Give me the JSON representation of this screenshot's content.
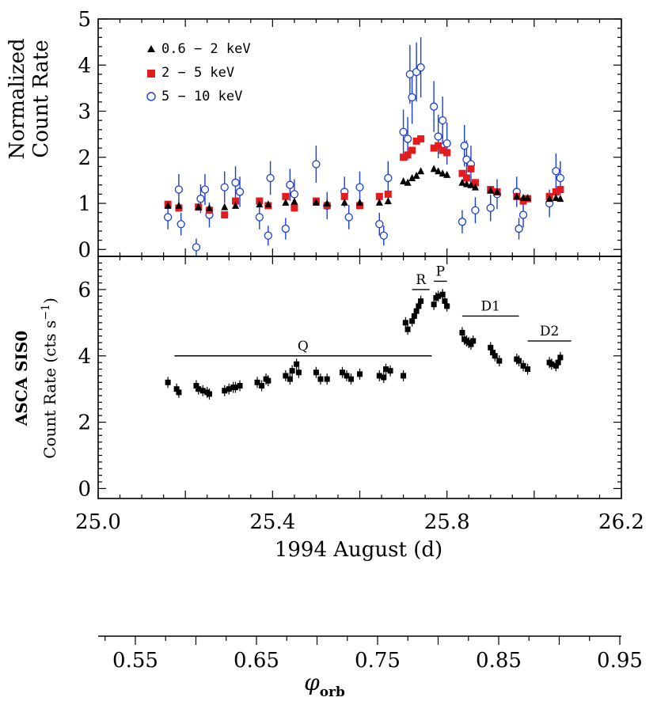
{
  "top_panel": {
    "ylabel_lines": [
      "Normalized",
      "Count Rate"
    ],
    "yticks": [
      "0",
      "1",
      "2",
      "3",
      "4",
      "5"
    ],
    "legend": [
      {
        "label": "0.6 − 2 keV",
        "marker": "triangle",
        "color": "#000000"
      },
      {
        "label": "2 − 5 keV",
        "marker": "square",
        "color": "#e41a1c"
      },
      {
        "label": "5 − 10 keV",
        "marker": "open-circle",
        "color": "#1a3fd6"
      }
    ]
  },
  "bottom_panel": {
    "ylabel_line1": "ASCA SIS0",
    "ylabel_line2_main": "Count Rate (cts s",
    "ylabel_line2_sup": "−1",
    "ylabel_line2_end": ")",
    "yticks": [
      "0",
      "2",
      "4",
      "6"
    ],
    "segments": [
      {
        "label": "Q",
        "x0": 25.175,
        "x1": 25.765,
        "y": 4.0
      },
      {
        "label": "R",
        "x0": 25.72,
        "x1": 25.76,
        "y": 6.0
      },
      {
        "label": "P",
        "x0": 25.77,
        "x1": 25.8,
        "y": 6.25
      },
      {
        "label": "D1",
        "x0": 25.835,
        "x1": 25.965,
        "y": 5.2
      },
      {
        "label": "D2",
        "x0": 25.985,
        "x1": 26.085,
        "y": 4.45
      }
    ]
  },
  "xaxis": {
    "label": "1994 August (d)",
    "ticks": [
      "25.0",
      "25.4",
      "25.8",
      "26.2"
    ]
  },
  "phase_axis": {
    "label_main": "φ",
    "label_sub": "orb",
    "ticks": [
      "0.55",
      "0.65",
      "0.75",
      "0.85",
      "0.95"
    ]
  },
  "chart_data": [
    {
      "type": "scatter",
      "title": "",
      "xlabel": "",
      "ylabel": "Normalized Count Rate",
      "xlim": [
        25.0,
        26.2
      ],
      "ylim": [
        -0.15,
        5.0
      ],
      "series": [
        {
          "name": "0.6 − 2 keV",
          "color": "#000000",
          "x": [
            25.16,
            25.185,
            25.23,
            25.255,
            25.29,
            25.315,
            25.37,
            25.39,
            25.43,
            25.45,
            25.5,
            25.525,
            25.565,
            25.6,
            25.645,
            25.665,
            25.7,
            25.71,
            25.72,
            25.73,
            25.74,
            25.77,
            25.78,
            25.79,
            25.8,
            25.835,
            25.845,
            25.855,
            25.865,
            25.9,
            25.915,
            25.96,
            25.975,
            25.985,
            26.035,
            26.05,
            26.06
          ],
          "values": [
            0.95,
            0.95,
            0.92,
            0.9,
            0.92,
            0.95,
            0.98,
            0.98,
            1.02,
            1.04,
            1.02,
            1.0,
            1.02,
            1.02,
            1.02,
            1.05,
            1.48,
            1.45,
            1.55,
            1.6,
            1.7,
            1.75,
            1.7,
            1.65,
            1.62,
            1.45,
            1.42,
            1.4,
            1.35,
            1.28,
            1.25,
            1.15,
            1.12,
            1.12,
            1.1,
            1.12,
            1.1
          ]
        },
        {
          "name": "2 − 5 keV",
          "color": "#e41a1c",
          "x": [
            25.16,
            25.185,
            25.23,
            25.255,
            25.29,
            25.315,
            25.37,
            25.39,
            25.43,
            25.45,
            25.5,
            25.525,
            25.565,
            25.6,
            25.645,
            25.665,
            25.7,
            25.71,
            25.72,
            25.73,
            25.74,
            25.77,
            25.78,
            25.79,
            25.8,
            25.835,
            25.845,
            25.855,
            25.865,
            25.9,
            25.915,
            25.96,
            25.975,
            25.985,
            26.035,
            26.05,
            26.06
          ],
          "values": [
            0.98,
            0.9,
            0.92,
            0.85,
            0.75,
            1.05,
            1.05,
            0.95,
            1.15,
            0.9,
            1.05,
            0.95,
            1.15,
            0.95,
            1.15,
            1.2,
            2.0,
            2.05,
            2.15,
            2.35,
            2.4,
            2.2,
            2.25,
            2.15,
            2.1,
            1.65,
            1.55,
            1.75,
            1.45,
            1.3,
            1.25,
            1.15,
            1.05,
            1.1,
            1.15,
            1.25,
            1.3
          ]
        },
        {
          "name": "5 − 10 keV",
          "color": "#1a3fd6",
          "x": [
            25.16,
            25.185,
            25.19,
            25.225,
            25.235,
            25.245,
            25.255,
            25.29,
            25.315,
            25.325,
            25.37,
            25.39,
            25.395,
            25.43,
            25.44,
            25.45,
            25.5,
            25.525,
            25.565,
            25.575,
            25.6,
            25.645,
            25.655,
            25.665,
            25.7,
            25.71,
            25.715,
            25.72,
            25.73,
            25.74,
            25.77,
            25.78,
            25.79,
            25.8,
            25.835,
            25.84,
            25.845,
            25.855,
            25.865,
            25.9,
            25.915,
            25.96,
            25.965,
            25.975,
            26.035,
            26.05,
            26.06
          ],
          "values": [
            0.7,
            1.3,
            0.55,
            0.05,
            1.1,
            1.3,
            0.75,
            1.35,
            1.45,
            1.25,
            0.7,
            0.3,
            1.55,
            0.45,
            1.4,
            1.2,
            1.85,
            0.95,
            1.25,
            0.7,
            1.35,
            0.55,
            0.3,
            1.55,
            2.55,
            2.4,
            3.8,
            3.3,
            3.85,
            3.95,
            3.1,
            2.45,
            2.8,
            2.3,
            0.6,
            2.25,
            1.95,
            1.85,
            0.85,
            0.9,
            1.2,
            1.25,
            0.45,
            0.75,
            1.0,
            1.7,
            1.55
          ]
        }
      ]
    },
    {
      "type": "scatter",
      "title": "",
      "xlabel": "1994 August (d)",
      "ylabel": "ASCA SIS0 Count Rate (cts s−1)",
      "xlim": [
        25.0,
        26.2
      ],
      "ylim": [
        -0.3,
        7.0
      ],
      "series": [
        {
          "name": "",
          "color": "#000000",
          "x": [
            25.16,
            25.18,
            25.185,
            25.225,
            25.23,
            25.24,
            25.25,
            25.255,
            25.29,
            25.3,
            25.31,
            25.315,
            25.325,
            25.365,
            25.375,
            25.385,
            25.39,
            25.43,
            25.44,
            25.445,
            25.455,
            25.46,
            25.5,
            25.51,
            25.525,
            25.56,
            25.57,
            25.58,
            25.6,
            25.645,
            25.655,
            25.66,
            25.67,
            25.7,
            25.705,
            25.71,
            25.72,
            25.725,
            25.73,
            25.735,
            25.74,
            25.77,
            25.775,
            25.78,
            25.79,
            25.795,
            25.8,
            25.835,
            25.84,
            25.845,
            25.85,
            25.855,
            25.86,
            25.9,
            25.905,
            25.91,
            25.92,
            25.96,
            25.965,
            25.975,
            25.985,
            26.035,
            26.04,
            26.05,
            26.055,
            26.06
          ],
          "values": [
            3.2,
            3.0,
            2.9,
            3.1,
            3.0,
            2.95,
            2.9,
            2.85,
            2.95,
            3.0,
            3.05,
            3.05,
            3.1,
            3.2,
            3.1,
            3.3,
            3.25,
            3.4,
            3.3,
            3.55,
            3.75,
            3.5,
            3.5,
            3.3,
            3.3,
            3.5,
            3.4,
            3.3,
            3.45,
            3.4,
            3.35,
            3.6,
            3.55,
            3.4,
            5.0,
            4.8,
            5.05,
            5.2,
            5.35,
            5.5,
            5.65,
            5.55,
            5.75,
            5.8,
            5.85,
            5.65,
            5.5,
            4.7,
            4.5,
            4.45,
            4.4,
            4.35,
            4.45,
            4.25,
            4.1,
            4.0,
            3.85,
            3.9,
            3.85,
            3.7,
            3.6,
            3.8,
            3.75,
            3.7,
            3.8,
            3.95
          ]
        }
      ]
    }
  ]
}
